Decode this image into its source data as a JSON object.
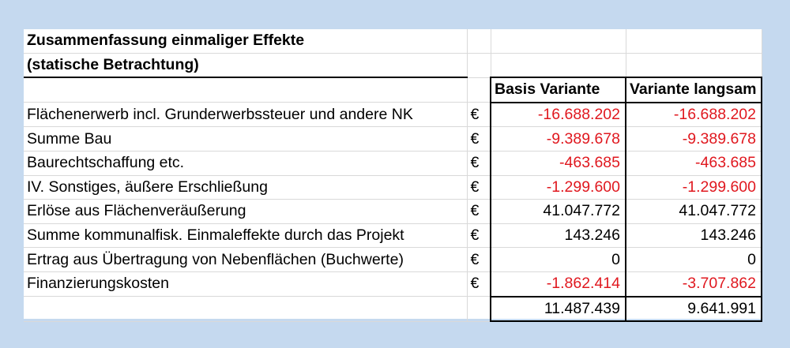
{
  "table": {
    "title_line1": "Zusammenfassung einmaliger Effekte",
    "title_line2": "(statische Betrachtung)",
    "headers": {
      "base": "Basis Variante",
      "slow": "Variante langsam"
    },
    "rows": [
      {
        "label": "Flächenerwerb incl. Grunderwerbssteuer und andere NK",
        "unit": "€",
        "base": "-16.688.202",
        "slow": "-16.688.202"
      },
      {
        "label": "Summe Bau",
        "unit": "€",
        "base": "-9.389.678",
        "slow": "-9.389.678"
      },
      {
        "label": "Baurechtschaffung etc.",
        "unit": "€",
        "base": "-463.685",
        "slow": "-463.685"
      },
      {
        "label": "IV. Sonstiges, äußere Erschließung",
        "unit": "€",
        "base": "-1.299.600",
        "slow": "-1.299.600"
      },
      {
        "label": "Erlöse aus Flächenveräußerung",
        "unit": "€",
        "base": "41.047.772",
        "slow": "41.047.772"
      },
      {
        "label": "Summe kommunalfisk. Einmaleffekte durch das Projekt",
        "unit": "€",
        "base": "143.246",
        "slow": "143.246"
      },
      {
        "label": "Ertrag aus Übertragung von Nebenflächen (Buchwerte)",
        "unit": "€",
        "base": "0",
        "slow": "0"
      },
      {
        "label": "Finanzierungskosten",
        "unit": "€",
        "base": "-1.862.414",
        "slow": "-3.707.862"
      }
    ],
    "totals": {
      "base": "11.487.439",
      "slow": "9.641.991"
    },
    "colors": {
      "negative": "#e0181f",
      "background": "#c5d9ef"
    }
  }
}
